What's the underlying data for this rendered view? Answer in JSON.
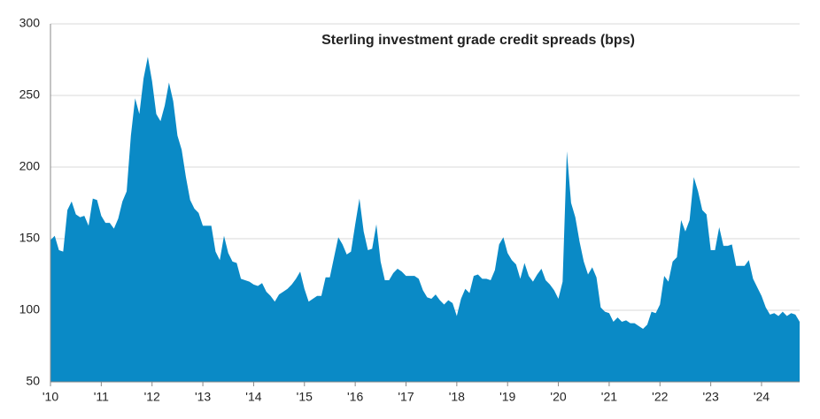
{
  "chart_data": {
    "type": "area",
    "title": "Sterling investment grade credit spreads (bps)",
    "color": "#0a8ac6",
    "values": [
      149,
      152,
      142,
      141,
      170,
      176,
      167,
      165,
      166,
      159,
      178,
      177,
      166,
      161,
      161,
      157,
      164,
      176,
      183,
      222,
      248,
      237,
      262,
      277,
      260,
      237,
      232,
      243,
      259,
      246,
      222,
      212,
      193,
      177,
      171,
      168,
      159,
      159,
      159,
      141,
      135,
      152,
      140,
      134,
      133,
      122,
      121,
      120,
      118,
      117,
      119,
      113,
      110,
      106,
      111,
      113,
      115,
      118,
      122,
      127,
      115,
      106,
      108,
      110,
      110,
      123,
      123,
      137,
      151,
      146,
      139,
      141,
      160,
      178,
      155,
      142,
      143,
      160,
      134,
      121,
      121,
      126,
      129,
      127,
      124,
      124,
      124,
      122,
      114,
      109,
      108,
      111,
      107,
      104,
      107,
      105,
      96,
      108,
      115,
      112,
      124,
      125,
      122,
      122,
      121,
      128,
      146,
      151,
      140,
      135,
      132,
      122,
      133,
      124,
      120,
      125,
      129,
      121,
      118,
      114,
      108,
      120,
      211,
      175,
      165,
      148,
      134,
      125,
      130,
      123,
      102,
      99,
      98,
      92,
      95,
      92,
      93,
      91,
      91,
      89,
      87,
      90,
      99,
      98,
      104,
      124,
      120,
      134,
      137,
      163,
      155,
      163,
      193,
      183,
      170,
      167,
      142,
      142,
      158,
      145,
      145,
      146,
      131,
      131,
      131,
      135,
      122,
      116,
      110,
      102,
      97,
      98,
      96,
      99,
      96,
      98,
      97,
      92
    ],
    "xlim": [
      0,
      177
    ],
    "xticks": [
      {
        "value": 0,
        "label": "'10"
      },
      {
        "value": 12,
        "label": "'11"
      },
      {
        "value": 24,
        "label": "'12"
      },
      {
        "value": 36,
        "label": "'13"
      },
      {
        "value": 48,
        "label": "'14"
      },
      {
        "value": 60,
        "label": "'15"
      },
      {
        "value": 72,
        "label": "'16"
      },
      {
        "value": 84,
        "label": "'17"
      },
      {
        "value": 96,
        "label": "'18"
      },
      {
        "value": 108,
        "label": "'19"
      },
      {
        "value": 120,
        "label": "'20"
      },
      {
        "value": 132,
        "label": "'21"
      },
      {
        "value": 144,
        "label": "'22"
      },
      {
        "value": 156,
        "label": "'23"
      },
      {
        "value": 168,
        "label": "'24"
      }
    ],
    "ylim": [
      50,
      300
    ],
    "yticks": [
      50,
      100,
      150,
      200,
      250,
      300
    ],
    "grid": true
  }
}
